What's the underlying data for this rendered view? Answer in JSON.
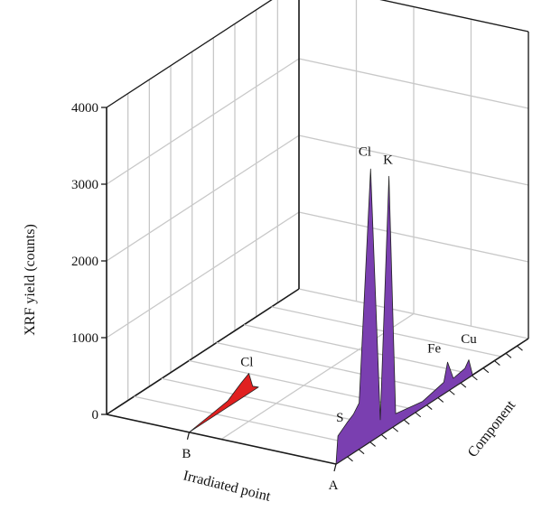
{
  "chart_data": {
    "type": "area",
    "title": "",
    "ylabel": "XRF yield (counts)",
    "xlabel": "Irradiated point",
    "zlabel": "Component",
    "y_ticks": [
      "0",
      "1000",
      "2000",
      "3000",
      "4000"
    ],
    "ylim": [
      0,
      4000
    ],
    "x_categories": [
      "B",
      "A"
    ],
    "grid": true,
    "series": [
      {
        "name": "B",
        "color": "#e02020",
        "points": [
          {
            "c": 0.0,
            "y": 0
          },
          {
            "c": 0.1,
            "y": 40
          },
          {
            "c": 0.2,
            "y": 80
          },
          {
            "c": 0.27,
            "y": 200
          },
          {
            "c": 0.31,
            "y": 260
          },
          {
            "c": 0.33,
            "y": 60
          },
          {
            "c": 0.36,
            "y": 0
          }
        ],
        "labels": [
          {
            "text": "Cl",
            "c": 0.3,
            "y": 300
          }
        ]
      },
      {
        "name": "A",
        "color": "#7a3fb0",
        "points": [
          {
            "c": 0.0,
            "y": 0
          },
          {
            "c": 0.01,
            "y": 350
          },
          {
            "c": 0.06,
            "y": 450
          },
          {
            "c": 0.09,
            "y": 500
          },
          {
            "c": 0.12,
            "y": 600
          },
          {
            "c": 0.18,
            "y": 3550
          },
          {
            "c": 0.23,
            "y": 200
          },
          {
            "c": 0.275,
            "y": 3300
          },
          {
            "c": 0.31,
            "y": 150
          },
          {
            "c": 0.45,
            "y": 80
          },
          {
            "c": 0.56,
            "y": 150
          },
          {
            "c": 0.58,
            "y": 380
          },
          {
            "c": 0.61,
            "y": 120
          },
          {
            "c": 0.67,
            "y": 150
          },
          {
            "c": 0.69,
            "y": 230
          },
          {
            "c": 0.71,
            "y": 0
          }
        ],
        "labels": [
          {
            "text": "S",
            "c": 0.02,
            "y": 450
          },
          {
            "text": "Cl",
            "c": 0.15,
            "y": 3700
          },
          {
            "text": "K",
            "c": 0.27,
            "y": 3400
          },
          {
            "text": "Fe",
            "c": 0.51,
            "y": 550
          },
          {
            "text": "Cu",
            "c": 0.69,
            "y": 380
          }
        ]
      }
    ]
  }
}
